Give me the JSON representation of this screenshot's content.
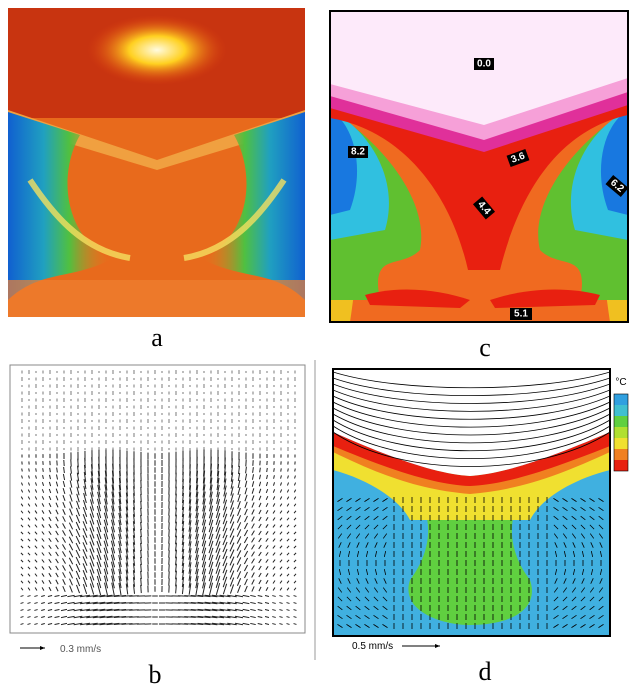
{
  "panels": {
    "a": {
      "label": "a"
    },
    "b": {
      "label": "b",
      "scale_label": "0.3 mm/s"
    },
    "c": {
      "label": "c",
      "contour_labels": [
        "0.0",
        "8.2",
        "3.6",
        "6.2",
        "4.4",
        "5.1"
      ]
    },
    "d": {
      "label": "d",
      "scale_label": "0.5 mm/s",
      "colorbar_unit": "°C"
    }
  }
}
